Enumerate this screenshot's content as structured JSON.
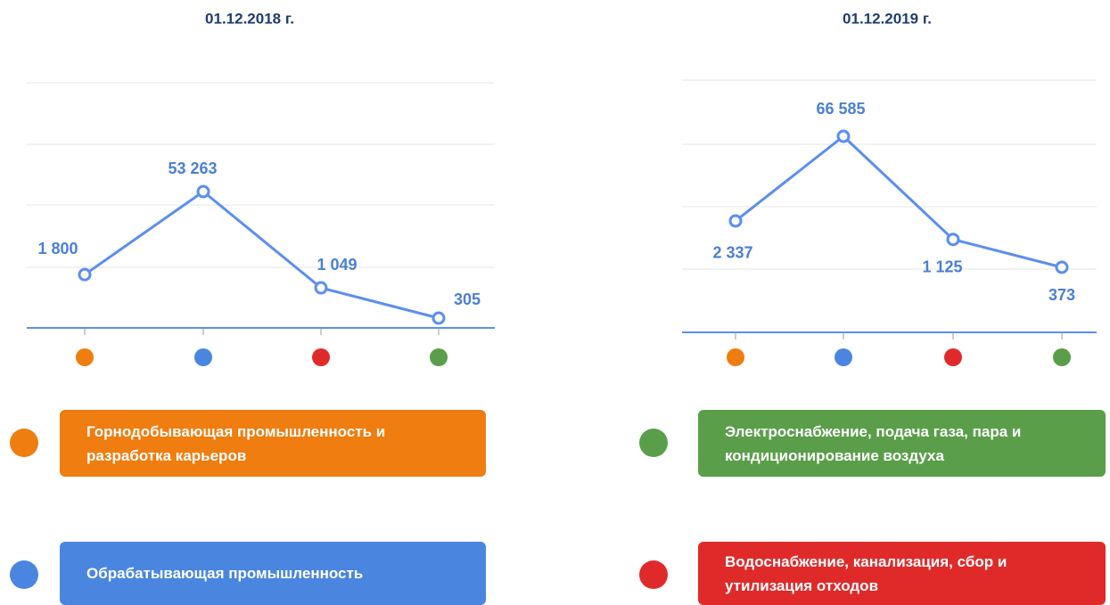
{
  "chart_data": [
    {
      "type": "line",
      "title": "01.12.2018 г.",
      "log_scale": true,
      "grid": true,
      "categories": [
        null,
        null,
        null,
        null
      ],
      "category_colors": [
        "#ef7d0f",
        "#4a86e0",
        "#e02a2a",
        "#5a9e4a"
      ],
      "series": [
        {
          "color": "#5b8ef0",
          "values": [
            1800,
            53263,
            1049,
            305
          ],
          "value_labels": [
            "1 800",
            "53 263",
            "1 049",
            "305"
          ]
        }
      ]
    },
    {
      "type": "line",
      "title": "01.12.2019 г.",
      "log_scale": true,
      "grid": true,
      "categories": [
        null,
        null,
        null,
        null
      ],
      "category_colors": [
        "#ef7d0f",
        "#4a86e0",
        "#e02a2a",
        "#5a9e4a"
      ],
      "series": [
        {
          "color": "#5b8ef0",
          "values": [
            2337,
            66585,
            1125,
            373
          ],
          "value_labels": [
            "2 337",
            "66 585",
            "1 125",
            "373"
          ]
        }
      ]
    }
  ],
  "legend": [
    {
      "label": "Горнодобывающая промышленность и разработка карьеров",
      "color": "#ef7d0f"
    },
    {
      "label": "Обрабатывающая промышленность",
      "color": "#4a86e0"
    },
    {
      "label": "Электроснабжение, подача газа, пара и кондиционирование воздуха",
      "color": "#5a9e4a"
    },
    {
      "label": "Водоснабжение, канализация, сбор и утилизация отходов",
      "color": "#e02a2a"
    }
  ]
}
